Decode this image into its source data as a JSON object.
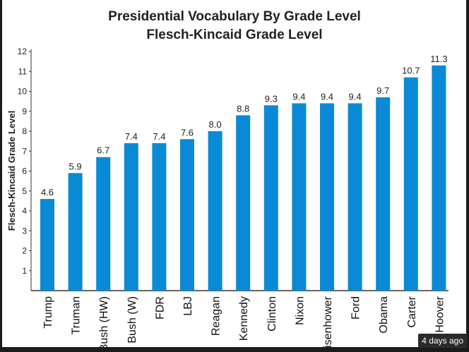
{
  "chart_data": {
    "type": "bar",
    "title": "Presidential Vocabulary By Grade Level",
    "subtitle": "Flesch-Kincaid Grade Level",
    "xlabel": "",
    "ylabel": "Flesch-Kincaid Grade Level",
    "ylim": [
      0,
      12
    ],
    "yticks": [
      1,
      2,
      3,
      4,
      5,
      6,
      7,
      8,
      9,
      10,
      11,
      12
    ],
    "grid": false,
    "categories": [
      "Trump",
      "Truman",
      "Bush (HW)",
      "Bush (W)",
      "FDR",
      "LBJ",
      "Reagan",
      "Kennedy",
      "Clinton",
      "Nixon",
      "Eisenhower",
      "Ford",
      "Obama",
      "Carter",
      "Hoover"
    ],
    "values": [
      4.6,
      5.9,
      6.7,
      7.4,
      7.4,
      7.6,
      8.0,
      8.8,
      9.3,
      9.4,
      9.4,
      9.4,
      9.7,
      10.7,
      11.3
    ],
    "data_labels": [
      "4.6",
      "5.9",
      "6.7",
      "7.4",
      "7.4",
      "7.6",
      "8.0",
      "8.8",
      "9.3",
      "9.4",
      "9.4",
      "9.4",
      "9.7",
      "10.7",
      "11.3"
    ],
    "bar_color": "#0a8ad6"
  },
  "badge": "4 days ago"
}
